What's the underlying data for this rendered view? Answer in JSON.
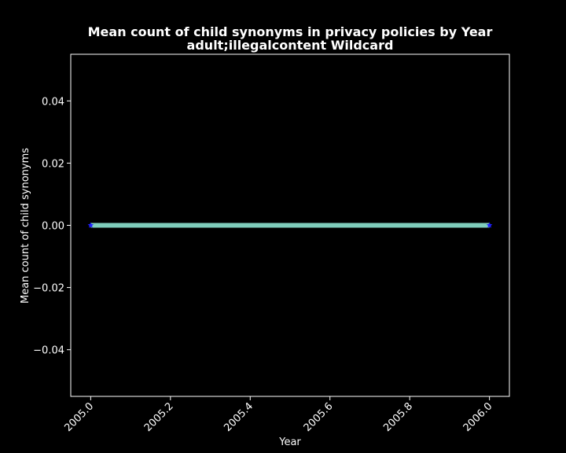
{
  "chart_data": {
    "type": "line",
    "title": "Mean count of child synonyms in privacy policies by Year",
    "subtitle": "adult;illegalcontent Wildcard",
    "xlabel": "Year",
    "ylabel": "Mean count of child synonyms",
    "x": [
      2005.0,
      2006.0
    ],
    "series": [
      {
        "values": [
          0.0,
          0.0
        ],
        "color": "#7fcdbb",
        "marker": "star",
        "marker_color": "#1f1fff"
      }
    ],
    "xlim": [
      2004.95,
      2006.05
    ],
    "ylim": [
      -0.055,
      0.055
    ],
    "xticks": [
      2005.0,
      2005.2,
      2005.4,
      2005.6,
      2005.8,
      2006.0
    ],
    "xtick_labels": [
      "2005.0",
      "2005.2",
      "2005.4",
      "2005.6",
      "2005.8",
      "2006.0"
    ],
    "yticks": [
      -0.04,
      -0.02,
      0.0,
      0.02,
      0.04
    ],
    "ytick_labels": [
      "−0.04",
      "−0.02",
      "0.00",
      "0.02",
      "0.04"
    ],
    "grid": false,
    "background": "#000000",
    "foreground": "#ffffff"
  }
}
